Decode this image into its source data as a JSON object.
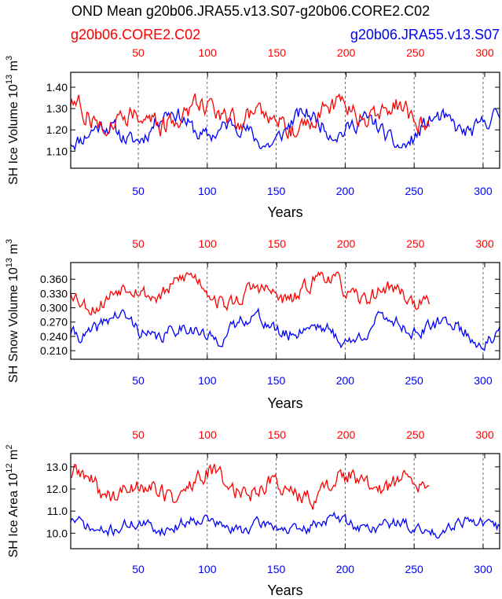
{
  "page_title": "OND Mean g20b06.JRA55.v13.S07-g20b06.CORE2.C02",
  "legend": {
    "red_label": "g20b06.CORE2.C02",
    "blue_label": "g20b06.JRA55.v13.S07"
  },
  "colors": {
    "red": "#ff0000",
    "blue": "#0000ff",
    "axis": "#000000"
  },
  "chart_data": [
    {
      "type": "line",
      "ylabel_main": "SH Ice Volume 10",
      "ylabel_exp": "13",
      "ylabel_unit": " m",
      "ylabel_unit_exp": "3",
      "xlabel": "Years",
      "ylim": [
        1.02,
        1.47
      ],
      "yticks": [
        1.1,
        1.2,
        1.3,
        1.4
      ],
      "ytick_labels": [
        "1.10",
        "1.20",
        "1.30",
        "1.40"
      ],
      "bottom_xlim": [
        1,
        312
      ],
      "bottom_ticks": [
        50,
        100,
        150,
        200,
        250,
        300
      ],
      "top_ticks": [
        50,
        100,
        150,
        200,
        250,
        300
      ],
      "series": [
        {
          "name": "g20b06.JRA55.v13.S07",
          "axis": "bottom",
          "n": 312,
          "seed": 11,
          "base": 1.205,
          "amp": 0.085,
          "noise": 0.032,
          "min": 1.02,
          "max": 1.3
        },
        {
          "name": "g20b06.CORE2.C02",
          "axis": "top",
          "n": 260,
          "seed": 27,
          "base": 1.268,
          "amp": 0.07,
          "noise": 0.042,
          "min": 1.1,
          "max": 1.45
        }
      ]
    },
    {
      "type": "line",
      "ylabel_main": "SH Snow Volume 10",
      "ylabel_exp": "13",
      "ylabel_unit": " m",
      "ylabel_unit_exp": "3",
      "xlabel": "Years",
      "ylim": [
        0.192,
        0.395
      ],
      "yticks": [
        0.21,
        0.24,
        0.27,
        0.3,
        0.33,
        0.36
      ],
      "ytick_labels": [
        "0.210",
        "0.240",
        "0.270",
        "0.300",
        "0.330",
        "0.360"
      ],
      "bottom_xlim": [
        1,
        312
      ],
      "bottom_ticks": [
        50,
        100,
        150,
        200,
        250,
        300
      ],
      "top_ticks": [
        50,
        100,
        150,
        200,
        250,
        300
      ],
      "series": [
        {
          "name": "g20b06.JRA55.v13.S07",
          "axis": "bottom",
          "n": 312,
          "seed": 41,
          "base": 0.255,
          "amp": 0.03,
          "noise": 0.012,
          "min": 0.196,
          "max": 0.305
        },
        {
          "name": "g20b06.CORE2.C02",
          "axis": "top",
          "n": 260,
          "seed": 53,
          "base": 0.335,
          "amp": 0.035,
          "noise": 0.014,
          "min": 0.276,
          "max": 0.39
        }
      ]
    },
    {
      "type": "line",
      "ylabel_main": "SH Ice Area 10",
      "ylabel_exp": "12",
      "ylabel_unit": " m",
      "ylabel_unit_exp": "2",
      "xlabel": "Years",
      "ylim": [
        9.3,
        13.6
      ],
      "yticks": [
        10.0,
        11.0,
        12.0,
        13.0
      ],
      "ytick_labels": [
        "10.0",
        "11.0",
        "12.0",
        "13.0"
      ],
      "bottom_xlim": [
        1,
        312
      ],
      "bottom_ticks": [
        50,
        100,
        150,
        200,
        250,
        300
      ],
      "top_ticks": [
        50,
        100,
        150,
        200,
        250,
        300
      ],
      "series": [
        {
          "name": "g20b06.JRA55.v13.S07",
          "axis": "bottom",
          "n": 312,
          "seed": 71,
          "base": 10.35,
          "amp": 0.35,
          "noise": 0.22,
          "min": 9.45,
          "max": 11.4
        },
        {
          "name": "g20b06.CORE2.C02",
          "axis": "top",
          "n": 260,
          "seed": 89,
          "base": 12.1,
          "amp": 0.65,
          "noise": 0.35,
          "min": 10.8,
          "max": 13.35
        }
      ]
    }
  ]
}
